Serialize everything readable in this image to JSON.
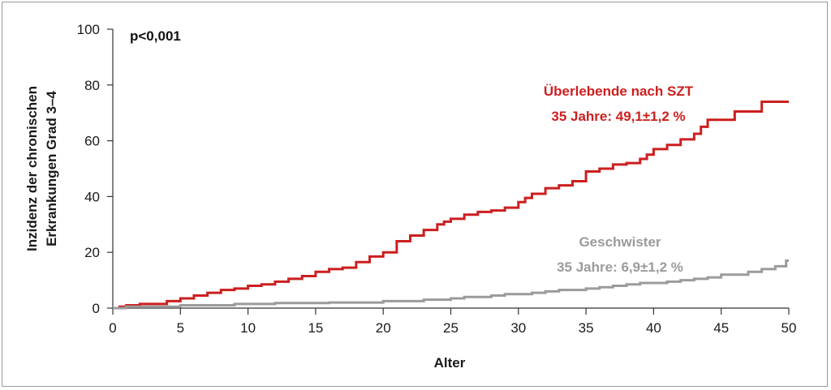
{
  "chart_data": {
    "type": "line",
    "step": true,
    "xlabel": "Alter",
    "ylabel": [
      "Inzidenz der chronischen",
      "Erkrankungen Grad 3–4"
    ],
    "xlim": [
      0,
      50
    ],
    "ylim": [
      0,
      100
    ],
    "xticks": [
      0,
      5,
      10,
      15,
      20,
      25,
      30,
      35,
      40,
      45,
      50
    ],
    "yticks": [
      0,
      20,
      40,
      60,
      80,
      100
    ],
    "grid": false,
    "annotation": "p<0,001",
    "series": [
      {
        "name": "Überlebende nach SZT",
        "sublabel": "35 Jahre: 49,1±1,2 %",
        "color": "#cc1f1f",
        "points": [
          [
            0,
            0
          ],
          [
            0.5,
            0.5
          ],
          [
            1,
            1
          ],
          [
            2,
            1.5
          ],
          [
            4,
            2.5
          ],
          [
            5,
            3.5
          ],
          [
            6,
            4.5
          ],
          [
            7,
            5.5
          ],
          [
            8,
            6.5
          ],
          [
            9,
            7
          ],
          [
            10,
            8
          ],
          [
            11,
            8.5
          ],
          [
            12,
            9.5
          ],
          [
            13,
            10.5
          ],
          [
            14,
            11.5
          ],
          [
            15,
            13
          ],
          [
            16,
            14
          ],
          [
            17,
            14.5
          ],
          [
            18,
            16.5
          ],
          [
            19,
            18.5
          ],
          [
            20,
            20
          ],
          [
            21,
            24
          ],
          [
            22,
            26
          ],
          [
            23,
            28
          ],
          [
            24,
            30
          ],
          [
            24.5,
            31
          ],
          [
            25,
            32
          ],
          [
            26,
            33.5
          ],
          [
            27,
            34.5
          ],
          [
            28,
            35
          ],
          [
            29,
            36
          ],
          [
            30,
            38
          ],
          [
            30.5,
            39.5
          ],
          [
            31,
            41
          ],
          [
            32,
            43
          ],
          [
            33,
            44
          ],
          [
            34,
            45.5
          ],
          [
            35,
            49
          ],
          [
            36,
            50
          ],
          [
            37,
            51.5
          ],
          [
            38,
            52
          ],
          [
            39,
            53.5
          ],
          [
            39.5,
            55
          ],
          [
            40,
            57
          ],
          [
            41,
            58.5
          ],
          [
            42,
            60.5
          ],
          [
            43,
            62.5
          ],
          [
            43.5,
            65
          ],
          [
            44,
            67.5
          ],
          [
            46,
            70.5
          ],
          [
            48,
            74
          ],
          [
            50,
            74
          ]
        ]
      },
      {
        "name": "Geschwister",
        "sublabel": "35 Jahre: 6,9±1,2 %",
        "color": "#9b9b9b",
        "points": [
          [
            0,
            0
          ],
          [
            1,
            0.5
          ],
          [
            5,
            1
          ],
          [
            9,
            1.5
          ],
          [
            12,
            1.8
          ],
          [
            16,
            2
          ],
          [
            20,
            2.5
          ],
          [
            23,
            3
          ],
          [
            25,
            3.5
          ],
          [
            26,
            4
          ],
          [
            28,
            4.5
          ],
          [
            29,
            5
          ],
          [
            31,
            5.5
          ],
          [
            32,
            6
          ],
          [
            33,
            6.5
          ],
          [
            35,
            7
          ],
          [
            36,
            7.5
          ],
          [
            37,
            8
          ],
          [
            38,
            8.5
          ],
          [
            39,
            9
          ],
          [
            41,
            9.5
          ],
          [
            42,
            10
          ],
          [
            43,
            10.5
          ],
          [
            44,
            11
          ],
          [
            45,
            12
          ],
          [
            47,
            13
          ],
          [
            48,
            14
          ],
          [
            49,
            15
          ],
          [
            49.8,
            17
          ],
          [
            50,
            17
          ]
        ]
      }
    ]
  }
}
